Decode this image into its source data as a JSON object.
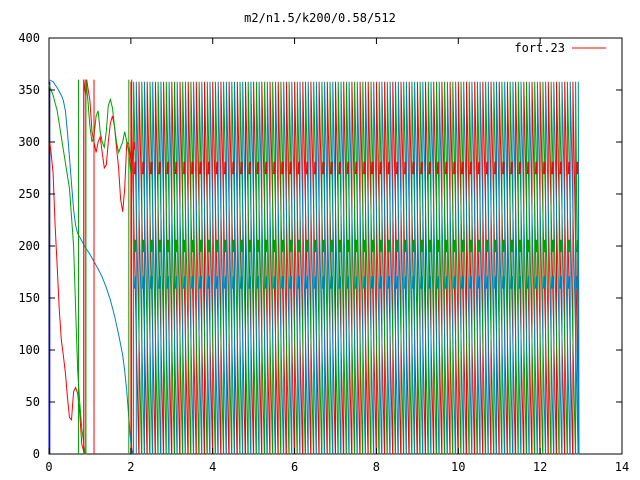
{
  "chart_data": {
    "type": "line",
    "title": "m2/n1.5/k200/0.58/512",
    "xlabel": "",
    "ylabel": "",
    "xlim": [
      0,
      14
    ],
    "ylim": [
      0,
      400
    ],
    "grid": false,
    "legend_position": "top-right",
    "x_ticks": [
      0,
      2,
      4,
      6,
      8,
      10,
      12,
      14
    ],
    "y_ticks": [
      0,
      50,
      100,
      150,
      200,
      250,
      300,
      350,
      400
    ],
    "legend": [
      {
        "label": "fort.23",
        "color": "#ff0000"
      }
    ],
    "series": [
      {
        "color": "#0000ff",
        "points": [
          [
            0,
            0
          ],
          [
            0.02,
            358
          ],
          [
            0.02,
            150
          ],
          [
            0.02,
            0
          ]
        ]
      },
      {
        "color": "#ff0000",
        "points": [
          [
            0.02,
            300
          ],
          [
            0.05,
            290
          ],
          [
            0.1,
            270
          ],
          [
            0.15,
            220
          ],
          [
            0.2,
            180
          ],
          [
            0.25,
            140
          ],
          [
            0.3,
            110
          ],
          [
            0.35,
            95
          ],
          [
            0.4,
            78
          ],
          [
            0.45,
            55
          ],
          [
            0.5,
            35
          ],
          [
            0.55,
            33
          ],
          [
            0.6,
            60
          ],
          [
            0.65,
            64
          ],
          [
            0.7,
            58
          ],
          [
            0.75,
            40
          ],
          [
            0.8,
            10
          ],
          [
            0.85,
            2
          ],
          [
            0.85,
            360
          ],
          [
            0.88,
            350
          ],
          [
            0.9,
            345
          ],
          [
            0.92,
            360
          ],
          [
            0.95,
            352
          ],
          [
            1.0,
            340
          ],
          [
            1.05,
            310
          ],
          [
            1.1,
            300
          ],
          [
            1.15,
            290
          ],
          [
            1.2,
            300
          ],
          [
            1.25,
            305
          ],
          [
            1.3,
            290
          ],
          [
            1.35,
            275
          ],
          [
            1.4,
            278
          ],
          [
            1.45,
            300
          ],
          [
            1.5,
            318
          ],
          [
            1.55,
            325
          ],
          [
            1.6,
            315
          ],
          [
            1.65,
            295
          ],
          [
            1.7,
            275
          ],
          [
            1.75,
            245
          ],
          [
            1.8,
            233
          ],
          [
            1.85,
            255
          ],
          [
            1.9,
            300
          ],
          [
            1.95,
            298
          ],
          [
            2.0,
            282
          ],
          [
            2.05,
            285
          ],
          [
            2.08,
            300
          ],
          [
            2.1,
            292
          ]
        ]
      },
      {
        "color": "#00a000",
        "points": [
          [
            0.0,
            355
          ],
          [
            0.1,
            345
          ],
          [
            0.2,
            330
          ],
          [
            0.3,
            305
          ],
          [
            0.4,
            280
          ],
          [
            0.5,
            255
          ],
          [
            0.6,
            200
          ],
          [
            0.65,
            140
          ],
          [
            0.7,
            80
          ],
          [
            0.75,
            50
          ],
          [
            0.8,
            25
          ],
          [
            0.85,
            10
          ],
          [
            0.88,
            0
          ],
          [
            0.9,
            0
          ],
          [
            0.9,
            360
          ],
          [
            0.95,
            340
          ],
          [
            1.0,
            315
          ],
          [
            1.05,
            300
          ],
          [
            1.1,
            305
          ],
          [
            1.15,
            325
          ],
          [
            1.2,
            330
          ],
          [
            1.25,
            310
          ],
          [
            1.3,
            300
          ],
          [
            1.35,
            295
          ],
          [
            1.4,
            310
          ],
          [
            1.45,
            335
          ],
          [
            1.5,
            341
          ],
          [
            1.55,
            333
          ],
          [
            1.6,
            315
          ],
          [
            1.65,
            300
          ],
          [
            1.7,
            290
          ],
          [
            1.75,
            295
          ],
          [
            1.8,
            300
          ],
          [
            1.85,
            310
          ],
          [
            1.9,
            300
          ],
          [
            1.95,
            290
          ],
          [
            2.0,
            270
          ]
        ]
      },
      {
        "color": "#0080c0",
        "points": [
          [
            0.0,
            360
          ],
          [
            0.1,
            358
          ],
          [
            0.2,
            352
          ],
          [
            0.3,
            345
          ],
          [
            0.35,
            340
          ],
          [
            0.4,
            330
          ],
          [
            0.45,
            310
          ],
          [
            0.5,
            285
          ],
          [
            0.55,
            260
          ],
          [
            0.6,
            235
          ],
          [
            0.65,
            220
          ],
          [
            0.7,
            212
          ],
          [
            0.8,
            205
          ],
          [
            0.9,
            198
          ],
          [
            1.0,
            192
          ],
          [
            1.1,
            185
          ],
          [
            1.2,
            178
          ],
          [
            1.3,
            170
          ],
          [
            1.4,
            160
          ],
          [
            1.5,
            148
          ],
          [
            1.6,
            133
          ],
          [
            1.7,
            115
          ],
          [
            1.8,
            95
          ],
          [
            1.85,
            80
          ],
          [
            1.9,
            60
          ],
          [
            1.95,
            35
          ],
          [
            2.0,
            10
          ],
          [
            2.05,
            0
          ]
        ]
      }
    ],
    "oscillation": {
      "start": 2.0,
      "end": 12.95,
      "period": 0.2,
      "max": 358,
      "min": 0,
      "colors": [
        "#ff0000",
        "#00a000",
        "#0080c0"
      ],
      "mid_bands": [
        {
          "value": 275,
          "color": "#ff0000"
        },
        {
          "value": 200,
          "color": "#00a000"
        },
        {
          "value": 165,
          "color": "#0080c0"
        }
      ]
    }
  }
}
